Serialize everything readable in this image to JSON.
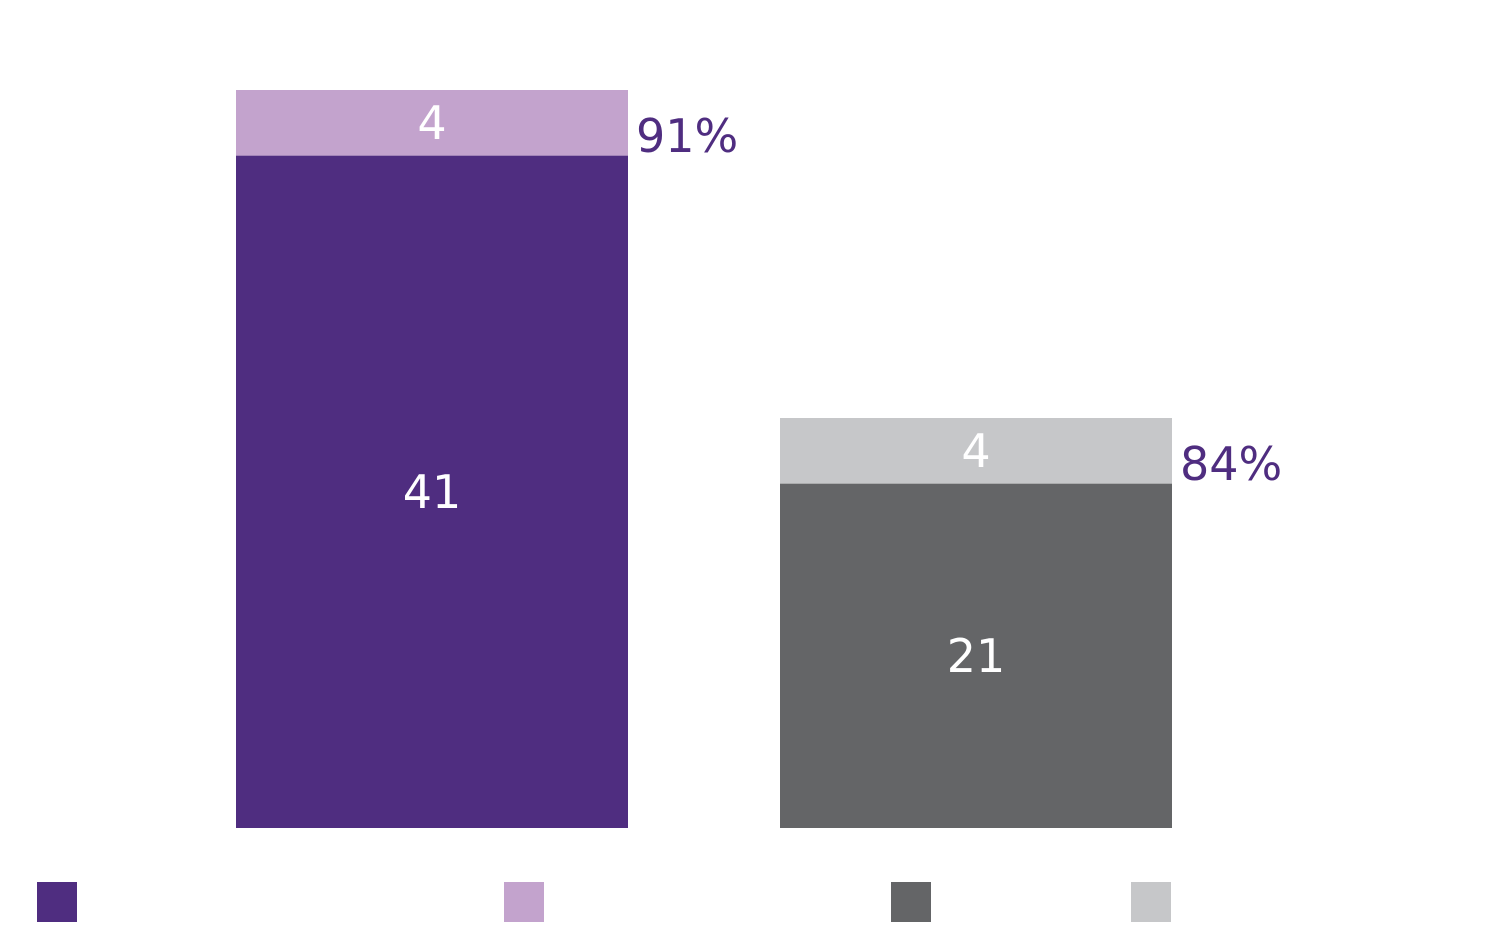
{
  "chart_data": {
    "type": "bar",
    "stacked": true,
    "categories": [
      "",
      ""
    ],
    "bars": [
      {
        "segments": [
          {
            "value": 41,
            "label": "41",
            "color": "#4f2d80"
          },
          {
            "value": 4,
            "label": "4",
            "color": "#c3a3cd"
          }
        ],
        "total_label": "91%"
      },
      {
        "segments": [
          {
            "value": 21,
            "label": "21",
            "color": "#646567"
          },
          {
            "value": 4,
            "label": "4",
            "color": "#c6c7c9"
          }
        ],
        "total_label": "84%"
      }
    ],
    "ylim": [
      0,
      45
    ],
    "grid": false,
    "axes_visible": false,
    "legend": {
      "placement": "bottom",
      "entries": [
        {
          "name": "",
          "color": "#4f2d80"
        },
        {
          "name": "",
          "color": "#c3a3cd"
        },
        {
          "name": "",
          "color": "#646567"
        },
        {
          "name": "",
          "color": "#c6c7c9"
        }
      ]
    },
    "total_label_color": "#4f2d80"
  }
}
